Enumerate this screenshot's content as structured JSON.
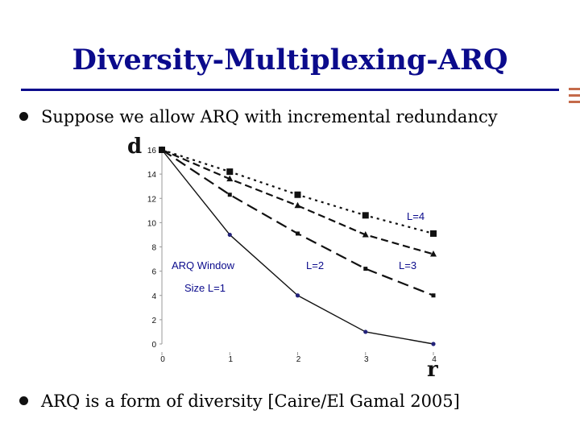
{
  "slide": {
    "title": "Diversity-Multiplexing-ARQ",
    "bullets": [
      "Suppose we allow ARQ with incremental redundancy",
      "ARQ is a form of diversity [Caire/El Gamal 2005]"
    ]
  },
  "chart_data": {
    "type": "line",
    "ylabel": "d",
    "xlabel": "r",
    "x": [
      0,
      1,
      2,
      3,
      4
    ],
    "xlim": [
      0,
      4
    ],
    "ylim": [
      0,
      16
    ],
    "xticks": [
      0,
      1,
      2,
      3,
      4
    ],
    "yticks": [
      0,
      2,
      4,
      6,
      8,
      10,
      12,
      14,
      16
    ],
    "grid": false,
    "series": [
      {
        "name": "ARQ Window Size L=1",
        "values": [
          16,
          9,
          4,
          1,
          0
        ],
        "style": "solid",
        "marker": "circle"
      },
      {
        "name": "L=2",
        "values": [
          16,
          12.3,
          9.1,
          6.2,
          4
        ],
        "style": "dashed",
        "marker": "square-small"
      },
      {
        "name": "L=3",
        "values": [
          16,
          13.6,
          11.4,
          9,
          7.4
        ],
        "style": "dashed-dotted",
        "marker": "triangle"
      },
      {
        "name": "L=4",
        "values": [
          16,
          14.2,
          12.3,
          10.6,
          9.1
        ],
        "style": "dotted",
        "marker": "square"
      }
    ],
    "annotations": [
      {
        "text": "ARQ Window",
        "series": 0
      },
      {
        "text": "Size L=1",
        "series": 0
      },
      {
        "text": "L=2",
        "series": 1
      },
      {
        "text": "L=3",
        "series": 2
      },
      {
        "text": "L=4",
        "series": 3
      }
    ],
    "colors": {
      "line": "#111111",
      "marker_circle": "#23237a",
      "annotation": "#0b0b8c",
      "title": "#0b0b8c"
    }
  }
}
